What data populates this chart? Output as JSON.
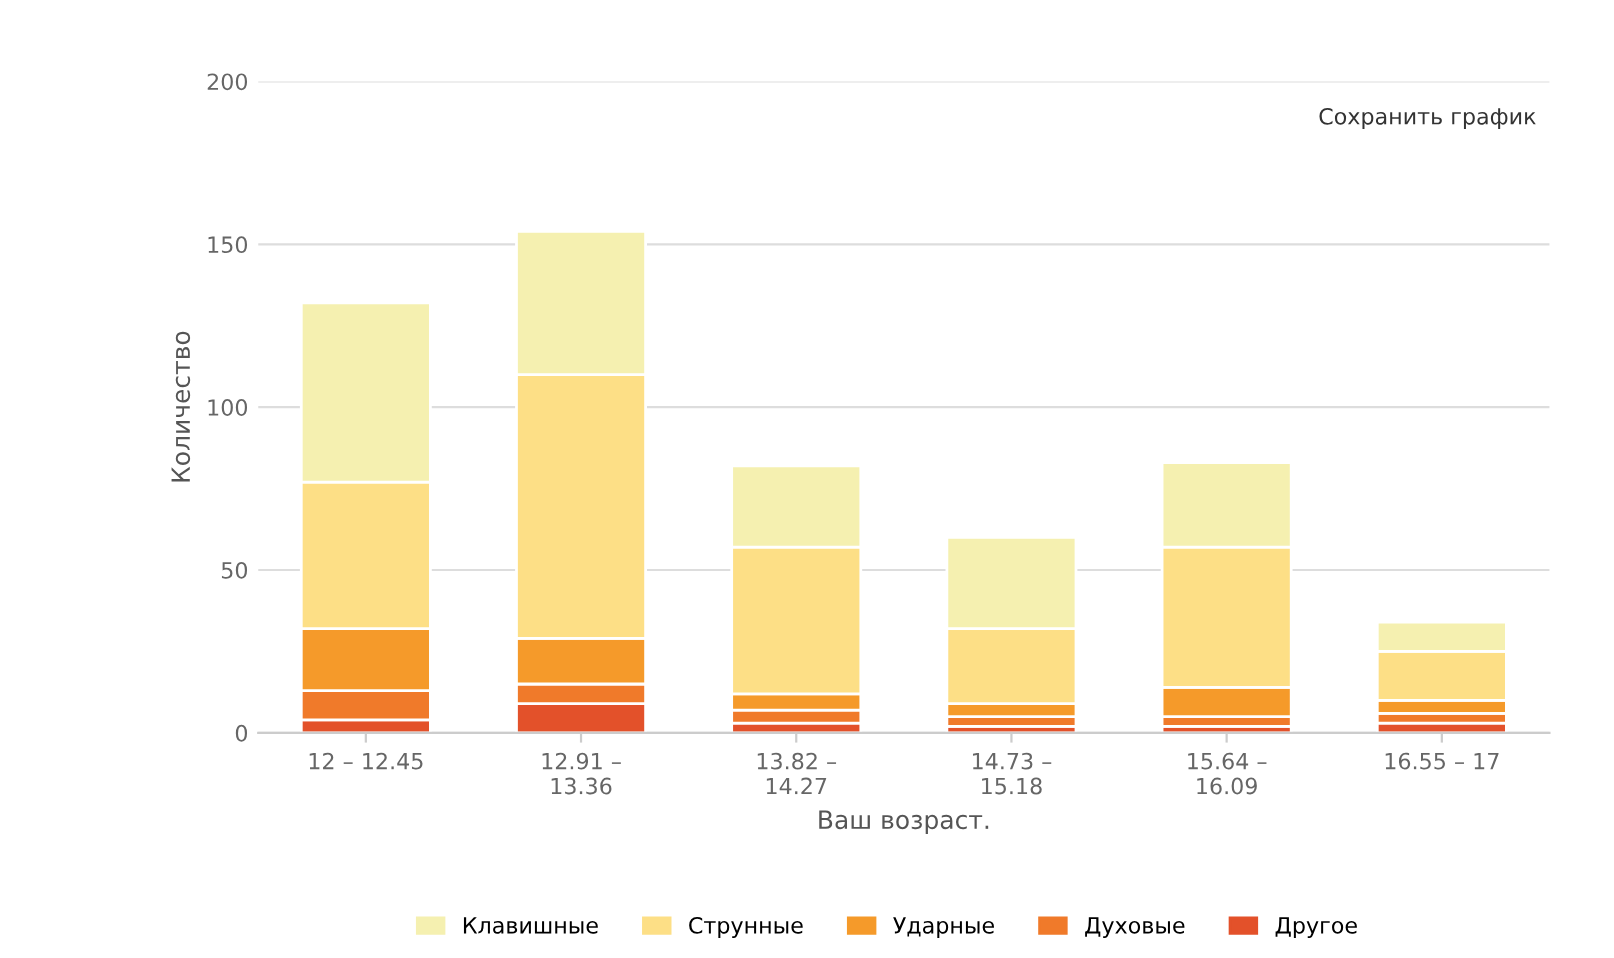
{
  "chart_data": {
    "type": "bar",
    "stacked": true,
    "xlabel": "Ваш возраст.",
    "ylabel": "Количество",
    "categories": [
      "12 – 12.45",
      "12.91 –\n13.36",
      "13.82 –\n14.27",
      "14.73 –\n15.18",
      "15.64 –\n16.09",
      "16.55 – 17"
    ],
    "series": [
      {
        "name": "Другое",
        "color": "#e3512a",
        "values": [
          4,
          9,
          3,
          2,
          2,
          3
        ]
      },
      {
        "name": "Духовые",
        "color": "#f07a2a",
        "values": [
          9,
          6,
          4,
          3,
          3,
          3
        ]
      },
      {
        "name": "Ударные",
        "color": "#f59a2a",
        "values": [
          19,
          14,
          5,
          4,
          9,
          4
        ]
      },
      {
        "name": "Струнные",
        "color": "#fddf86",
        "values": [
          45,
          81,
          45,
          23,
          43,
          15
        ]
      },
      {
        "name": "Клавишные",
        "color": "#f5f0b0",
        "values": [
          55,
          44,
          25,
          28,
          26,
          9
        ]
      }
    ],
    "ylim": [
      0,
      200
    ],
    "yticks": [
      0,
      50,
      100,
      150,
      200
    ],
    "grid": "y",
    "legend": "bottom",
    "annotations": [
      "Сохранить график"
    ]
  }
}
